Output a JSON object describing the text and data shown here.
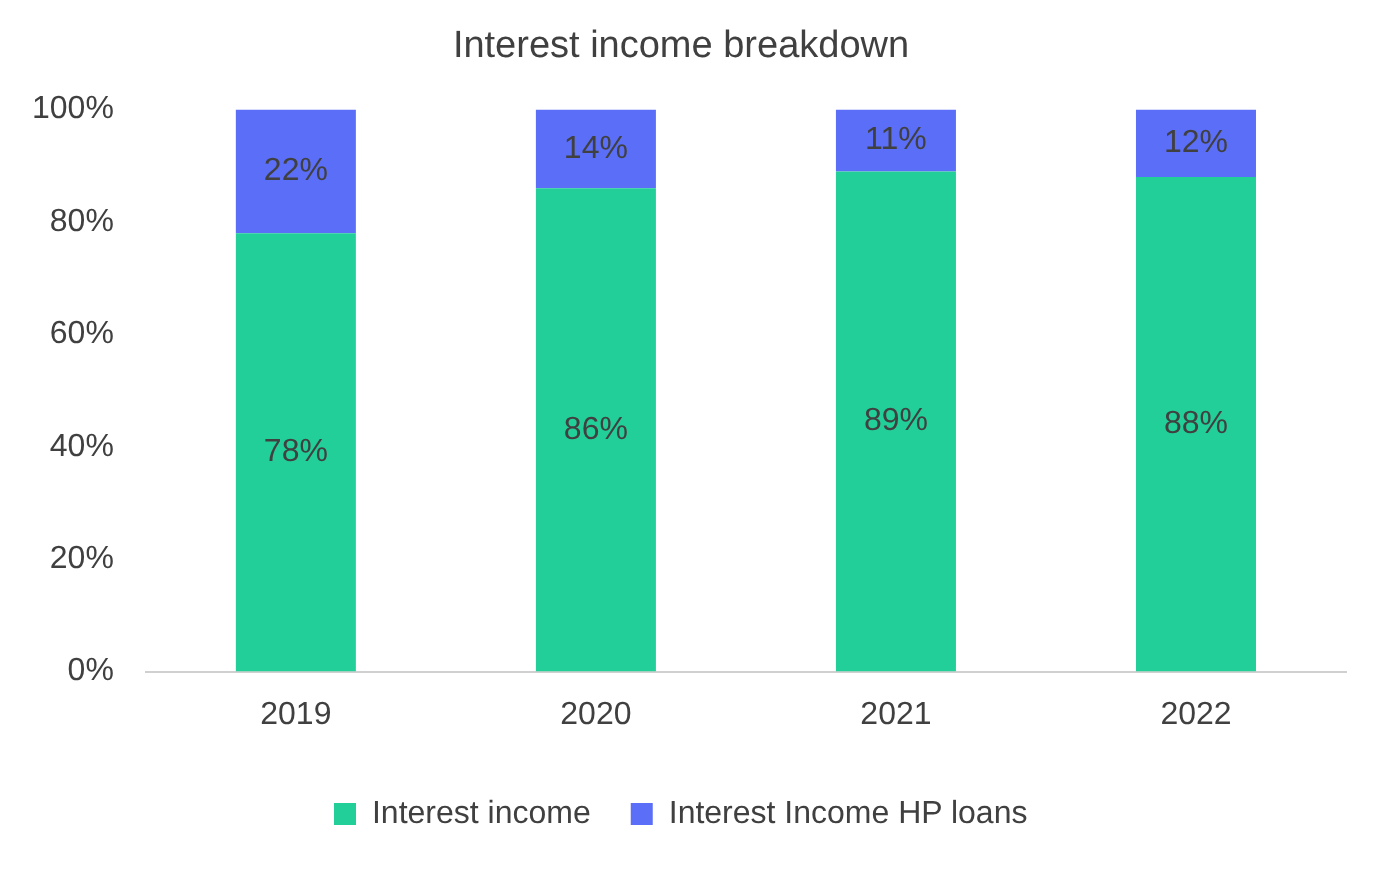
{
  "chart_data": {
    "type": "bar",
    "title": "Interest income breakdown",
    "categories": [
      "2019",
      "2020",
      "2021",
      "2022"
    ],
    "stacked": true,
    "series": [
      {
        "name": "Interest income",
        "color": "#22cf98",
        "values": [
          78,
          86,
          89,
          88
        ],
        "value_labels": [
          "78%",
          "86%",
          "89%",
          "88%"
        ]
      },
      {
        "name": "Interest Income HP loans",
        "color": "#5b6ef7",
        "values": [
          22,
          14,
          11,
          12
        ],
        "value_labels": [
          "22%",
          "14%",
          "11%",
          "12%"
        ]
      }
    ],
    "ylim": [
      0,
      100
    ],
    "yticks": [
      {
        "value": 0,
        "label": "0%"
      },
      {
        "value": 20,
        "label": "20%"
      },
      {
        "value": 40,
        "label": "40%"
      },
      {
        "value": 60,
        "label": "60%"
      },
      {
        "value": 80,
        "label": "80%"
      },
      {
        "value": 100,
        "label": "100%"
      }
    ],
    "grid": false,
    "legend": "bottom"
  }
}
